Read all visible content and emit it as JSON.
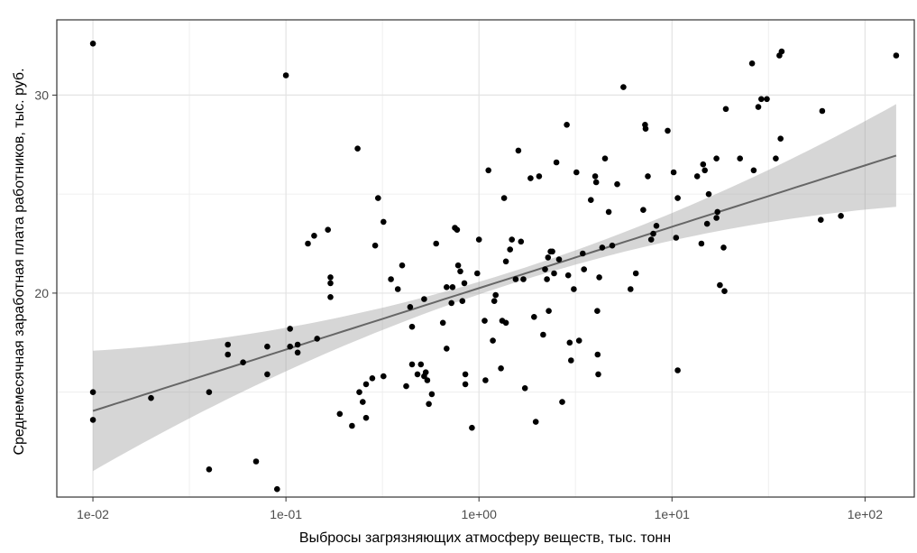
{
  "chart_data": {
    "type": "scatter",
    "title": "",
    "xlabel": "Выбросы загрязняющих атмосферу веществ, тыс. тонн",
    "ylabel": "Среднемесячная заработная плата работников, тыс. руб.",
    "x_scale": "log10",
    "xlim": [
      0.0065,
      180
    ],
    "ylim": [
      9.7,
      33.8
    ],
    "x_ticks": [
      {
        "value": 0.01,
        "label": "1e-02"
      },
      {
        "value": 0.1,
        "label": "1e-01"
      },
      {
        "value": 1,
        "label": "1e+00"
      },
      {
        "value": 10,
        "label": "1e+01"
      },
      {
        "value": 100,
        "label": "1e+02"
      }
    ],
    "x_minor_breaks": [
      0.0316,
      0.316,
      3.16,
      31.6
    ],
    "y_ticks": [
      {
        "value": 20,
        "label": "20"
      },
      {
        "value": 30,
        "label": "30"
      }
    ],
    "y_minor_breaks": [
      15,
      25
    ],
    "grid": true,
    "trend": {
      "type": "linear fit with confidence band",
      "intercept": 20.25,
      "slope_per_log10": 3.1,
      "ci_half_width_at_center": 0.3,
      "ci_growth": 0.58
    },
    "points": [
      [
        0.01,
        32.6
      ],
      [
        0.01,
        15
      ],
      [
        0.01,
        13.6
      ],
      [
        0.02,
        14.7
      ],
      [
        0.04,
        15
      ],
      [
        0.04,
        11.1
      ],
      [
        0.05,
        17.4
      ],
      [
        0.05,
        16.9
      ],
      [
        0.06,
        16.5
      ],
      [
        0.07,
        11.5
      ],
      [
        0.08,
        17.3
      ],
      [
        0.08,
        15.9
      ],
      [
        0.09,
        10.1
      ],
      [
        0.1,
        31
      ],
      [
        0.105,
        18.2
      ],
      [
        0.105,
        17.3
      ],
      [
        0.115,
        17.4
      ],
      [
        0.115,
        17
      ],
      [
        0.13,
        22.5
      ],
      [
        0.14,
        22.9
      ],
      [
        0.145,
        17.7
      ],
      [
        0.165,
        23.2
      ],
      [
        0.17,
        20.8
      ],
      [
        0.17,
        20.5
      ],
      [
        0.17,
        19.8
      ],
      [
        0.19,
        13.9
      ],
      [
        0.22,
        13.3
      ],
      [
        0.235,
        27.3
      ],
      [
        0.24,
        15
      ],
      [
        0.25,
        14.5
      ],
      [
        0.26,
        15.4
      ],
      [
        0.26,
        13.7
      ],
      [
        0.28,
        15.7
      ],
      [
        0.29,
        22.4
      ],
      [
        0.3,
        24.8
      ],
      [
        0.32,
        23.6
      ],
      [
        0.32,
        15.8
      ],
      [
        0.35,
        20.7
      ],
      [
        0.38,
        20.2
      ],
      [
        0.4,
        21.4
      ],
      [
        0.42,
        15.3
      ],
      [
        0.44,
        19.3
      ],
      [
        0.45,
        18.3
      ],
      [
        0.45,
        16.4
      ],
      [
        0.48,
        15.9
      ],
      [
        0.5,
        16.4
      ],
      [
        0.52,
        19.7
      ],
      [
        0.52,
        15.8
      ],
      [
        0.53,
        16
      ],
      [
        0.54,
        15.6
      ],
      [
        0.55,
        14.4
      ],
      [
        0.57,
        14.9
      ],
      [
        0.6,
        22.5
      ],
      [
        0.65,
        18.5
      ],
      [
        0.68,
        17.2
      ],
      [
        0.68,
        20.3
      ],
      [
        0.72,
        19.5
      ],
      [
        0.73,
        20.3
      ],
      [
        0.75,
        23.3
      ],
      [
        0.77,
        23.2
      ],
      [
        0.78,
        21.4
      ],
      [
        0.8,
        21.1
      ],
      [
        0.82,
        19.6
      ],
      [
        0.84,
        20.5
      ],
      [
        0.85,
        15.9
      ],
      [
        0.85,
        15.4
      ],
      [
        0.92,
        13.2
      ],
      [
        0.98,
        21
      ],
      [
        1.0,
        22.7
      ],
      [
        1.07,
        18.6
      ],
      [
        1.08,
        15.6
      ],
      [
        1.12,
        26.2
      ],
      [
        1.18,
        17.6
      ],
      [
        1.2,
        19.6
      ],
      [
        1.22,
        19.9
      ],
      [
        1.3,
        16.2
      ],
      [
        1.32,
        18.6
      ],
      [
        1.35,
        24.8
      ],
      [
        1.38,
        21.6
      ],
      [
        1.38,
        18.5
      ],
      [
        1.45,
        22.2
      ],
      [
        1.48,
        22.7
      ],
      [
        1.55,
        20.7
      ],
      [
        1.6,
        27.2
      ],
      [
        1.65,
        22.6
      ],
      [
        1.7,
        20.7
      ],
      [
        1.73,
        15.2
      ],
      [
        1.85,
        25.8
      ],
      [
        1.93,
        18.8
      ],
      [
        1.97,
        13.5
      ],
      [
        2.05,
        25.9
      ],
      [
        2.15,
        17.9
      ],
      [
        2.2,
        21.2
      ],
      [
        2.25,
        20.7
      ],
      [
        2.28,
        21.8
      ],
      [
        2.3,
        19.1
      ],
      [
        2.35,
        22.1
      ],
      [
        2.4,
        22.1
      ],
      [
        2.45,
        21
      ],
      [
        2.52,
        26.6
      ],
      [
        2.6,
        21.7
      ],
      [
        2.7,
        14.5
      ],
      [
        2.85,
        28.5
      ],
      [
        2.9,
        20.9
      ],
      [
        2.95,
        17.5
      ],
      [
        3.0,
        16.6
      ],
      [
        3.1,
        20.2
      ],
      [
        3.2,
        26.1
      ],
      [
        3.3,
        17.6
      ],
      [
        3.45,
        22
      ],
      [
        3.5,
        21.2
      ],
      [
        3.8,
        24.7
      ],
      [
        4.0,
        25.9
      ],
      [
        4.05,
        25.6
      ],
      [
        4.1,
        19.1
      ],
      [
        4.12,
        16.9
      ],
      [
        4.15,
        15.9
      ],
      [
        4.2,
        20.8
      ],
      [
        4.35,
        22.3
      ],
      [
        4.5,
        26.8
      ],
      [
        4.7,
        24.1
      ],
      [
        4.9,
        22.4
      ],
      [
        5.2,
        25.5
      ],
      [
        5.6,
        30.4
      ],
      [
        6.1,
        20.2
      ],
      [
        6.5,
        21
      ],
      [
        7.1,
        24.2
      ],
      [
        7.25,
        28.5
      ],
      [
        7.3,
        28.3
      ],
      [
        7.5,
        25.9
      ],
      [
        7.8,
        22.7
      ],
      [
        8.0,
        23
      ],
      [
        8.3,
        23.4
      ],
      [
        9.5,
        28.2
      ],
      [
        10.2,
        26.1
      ],
      [
        10.5,
        22.8
      ],
      [
        10.7,
        16.1
      ],
      [
        10.7,
        24.8
      ],
      [
        13.5,
        25.9
      ],
      [
        14.2,
        22.5
      ],
      [
        14.5,
        26.5
      ],
      [
        14.8,
        26.2
      ],
      [
        15.2,
        23.5
      ],
      [
        15.5,
        25
      ],
      [
        17.0,
        23.8
      ],
      [
        17.0,
        26.8
      ],
      [
        17.2,
        24.1
      ],
      [
        17.7,
        20.4
      ],
      [
        18.5,
        22.3
      ],
      [
        18.7,
        20.1
      ],
      [
        19.0,
        29.3
      ],
      [
        22.5,
        26.8
      ],
      [
        26.0,
        31.6
      ],
      [
        26.5,
        26.2
      ],
      [
        28.0,
        29.4
      ],
      [
        29.0,
        29.8
      ],
      [
        31.0,
        29.8
      ],
      [
        34.5,
        26.8
      ],
      [
        36.0,
        32
      ],
      [
        36.5,
        27.8
      ],
      [
        37.0,
        32.2
      ],
      [
        59.0,
        23.7
      ],
      [
        60.0,
        29.2
      ],
      [
        75.0,
        23.9
      ],
      [
        145.0,
        32
      ]
    ]
  }
}
